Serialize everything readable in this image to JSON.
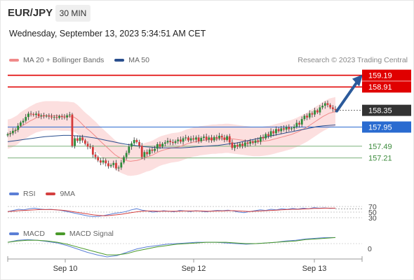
{
  "header": {
    "symbol": "EUR/JPY",
    "timeframe": "30 MIN"
  },
  "datetime": "Wednesday, September 13, 2023 5:34:51 AM CET",
  "legend": {
    "ma_bb_label": "MA 20 + Bollinger Bands",
    "ma50_label": "MA 50",
    "credit": "Research © 2023 Trading Central",
    "rsi_label": "RSI",
    "rsi_ma_label": "9MA",
    "macd_label": "MACD",
    "macd_signal_label": "MACD Signal"
  },
  "colors": {
    "ma20": "#f08a8a",
    "ma50": "#2a4f8e",
    "bollinger": "#fbd9d9",
    "bull": "#2d8b3a",
    "bear": "#d43a3a",
    "resistance": "#e00000",
    "pivot": "#2a6bd0",
    "support": "#7ab07a",
    "rsi": "#5b7fd6",
    "rsi_ma": "#d44040",
    "macd": "#5b7fd6",
    "macd_signal": "#4a9a2a",
    "arrow": "#2b5a9b",
    "last_price": "#333333"
  },
  "chart_data": [
    {
      "type": "candlestick",
      "symbol": "EUR/JPY",
      "x_labels": [
        "Sep 10",
        "Sep 12",
        "Sep 13"
      ],
      "ylim": [
        156.6,
        159.35
      ],
      "last_price": 158.35,
      "levels": [
        {
          "label": "159.19",
          "value": 159.19,
          "kind": "resistance"
        },
        {
          "label": "158.91",
          "value": 158.91,
          "kind": "resistance"
        },
        {
          "label": "157.95",
          "value": 157.95,
          "kind": "pivot"
        },
        {
          "label": "157.49",
          "value": 157.49,
          "kind": "support"
        },
        {
          "label": "157.21",
          "value": 157.21,
          "kind": "support"
        }
      ],
      "close": [
        157.78,
        157.8,
        157.86,
        157.88,
        157.98,
        158.06,
        158.1,
        158.19,
        158.27,
        158.26,
        158.24,
        158.27,
        158.21,
        158.23,
        158.21,
        158.22,
        158.2,
        158.18,
        158.19,
        158.17,
        158.21,
        158.19,
        158.18,
        158.23,
        158.25,
        157.5,
        157.68,
        157.62,
        157.7,
        157.63,
        157.55,
        157.48,
        157.47,
        157.29,
        157.23,
        157.15,
        157.1,
        157.15,
        157.08,
        157.01,
        157.04,
        157.09,
        156.96,
        156.98,
        157.1,
        157.23,
        157.33,
        157.48,
        157.56,
        157.64,
        157.59,
        157.5,
        157.23,
        157.35,
        157.3,
        157.41,
        157.38,
        157.43,
        157.54,
        157.48,
        157.55,
        157.58,
        157.62,
        157.59,
        157.57,
        157.61,
        157.65,
        157.6,
        157.68,
        157.7,
        157.63,
        157.68,
        157.65,
        157.7,
        157.61,
        157.69,
        157.72,
        157.65,
        157.7,
        157.63,
        157.71,
        157.68,
        157.74,
        157.7,
        157.64,
        157.73,
        157.58,
        157.45,
        157.52,
        157.48,
        157.55,
        157.5,
        157.58,
        157.55,
        157.6,
        157.57,
        157.63,
        157.6,
        157.71,
        157.68,
        157.78,
        157.74,
        157.85,
        157.8,
        157.9,
        157.85,
        157.92,
        157.89,
        157.95,
        157.9,
        157.92,
        157.96,
        158.05,
        158.01,
        158.14,
        158.22,
        158.18,
        158.28,
        158.25,
        158.35,
        158.3,
        158.42,
        158.46,
        158.52,
        158.48,
        158.42,
        158.38,
        158.35
      ],
      "ma20": [
        157.78,
        157.8,
        157.84,
        157.88,
        157.95,
        158.0,
        158.04,
        158.09,
        158.13,
        158.17,
        158.19,
        158.21,
        158.22,
        158.22,
        158.22,
        158.22,
        158.22,
        158.21,
        158.21,
        158.21,
        158.2,
        158.19,
        158.14,
        158.07,
        157.99,
        157.92,
        157.86,
        157.79,
        157.72,
        157.64,
        157.57,
        157.5,
        157.43,
        157.36,
        157.29,
        157.24,
        157.2,
        157.17,
        157.14,
        157.13,
        157.14,
        157.15,
        157.17,
        157.2,
        157.23,
        157.25,
        157.28,
        157.32,
        157.36,
        157.39,
        157.41,
        157.43,
        157.45,
        157.46,
        157.47,
        157.49,
        157.52,
        157.55,
        157.57,
        157.59,
        157.6,
        157.62,
        157.63,
        157.64,
        157.65,
        157.66,
        157.66,
        157.67,
        157.67,
        157.68,
        157.68,
        157.67,
        157.66,
        157.65,
        157.64,
        157.63,
        157.62,
        157.61,
        157.6,
        157.6,
        157.6,
        157.61,
        157.62,
        157.63,
        157.65,
        157.67,
        157.69,
        157.71,
        157.73,
        157.75,
        157.77,
        157.8,
        157.83,
        157.87,
        157.91,
        157.95,
        158.0,
        158.05,
        158.1,
        158.15,
        158.2,
        158.24,
        158.28,
        158.3,
        158.32
      ],
      "ma50": [
        157.6,
        157.62,
        157.64,
        157.66,
        157.68,
        157.7,
        157.72,
        157.73,
        157.74,
        157.75,
        157.75,
        157.74,
        157.73,
        157.71,
        157.69,
        157.66,
        157.63,
        157.6,
        157.57,
        157.54,
        157.52,
        157.5,
        157.48,
        157.47,
        157.46,
        157.45,
        157.45,
        157.45,
        157.45,
        157.46,
        157.47,
        157.48,
        157.49,
        157.5,
        157.51,
        157.53,
        157.55,
        157.57,
        157.6,
        157.63,
        157.66,
        157.69,
        157.72,
        157.75,
        157.78,
        157.81,
        157.84,
        157.87,
        157.9,
        157.93,
        157.96,
        157.98,
        157.99,
        158.0
      ],
      "bollinger_band": "ma20 ± ~0.35"
    },
    {
      "type": "line",
      "name": "RSI",
      "levels": [
        70,
        50,
        30
      ],
      "ylim": [
        0,
        100
      ],
      "series": [
        {
          "name": "RSI",
          "values": [
            52,
            56,
            60,
            58,
            62,
            64,
            61,
            59,
            60,
            58,
            56,
            52,
            48,
            44,
            40,
            36,
            34,
            35,
            38,
            42,
            46,
            48,
            52,
            58,
            62,
            57,
            54,
            50,
            52,
            55,
            53,
            51,
            56,
            54,
            52,
            55,
            53,
            51,
            54,
            56,
            55,
            57,
            54,
            50,
            48,
            52,
            55,
            58,
            56,
            60,
            58,
            62,
            60,
            63,
            61,
            64,
            62,
            66,
            64,
            65,
            63,
            64
          ]
        },
        {
          "name": "9MA",
          "values": [
            52,
            53,
            55,
            56,
            57,
            58,
            59,
            59,
            59,
            58,
            57,
            55,
            52,
            49,
            46,
            43,
            40,
            38,
            37,
            38,
            40,
            42,
            45,
            48,
            51,
            53,
            54,
            54,
            53,
            53,
            53,
            53,
            53,
            54,
            54,
            54,
            54,
            53,
            53,
            54,
            54,
            55,
            55,
            54,
            53,
            52,
            53,
            54,
            55,
            56,
            57,
            58,
            59,
            60,
            60,
            61,
            62,
            63,
            63,
            64,
            64,
            64
          ]
        }
      ]
    },
    {
      "type": "line",
      "name": "MACD",
      "levels": [
        0
      ],
      "series": [
        {
          "name": "MACD",
          "values": [
            0.02,
            0.05,
            0.06,
            0.05,
            0.03,
            0.01,
            -0.03,
            -0.08,
            -0.13,
            -0.17,
            -0.2,
            -0.18,
            -0.13,
            -0.08,
            -0.05,
            -0.03,
            -0.01,
            0.0,
            0.01,
            0.02,
            0.02,
            0.02,
            0.01,
            0.0,
            -0.01,
            0.0,
            0.01,
            0.02,
            0.04,
            0.05,
            0.07,
            0.08,
            0.09,
            0.09
          ]
        },
        {
          "name": "MACD Signal",
          "values": [
            0.02,
            0.04,
            0.05,
            0.05,
            0.04,
            0.02,
            -0.01,
            -0.05,
            -0.09,
            -0.13,
            -0.17,
            -0.17,
            -0.15,
            -0.11,
            -0.08,
            -0.05,
            -0.03,
            -0.01,
            0.0,
            0.01,
            0.02,
            0.02,
            0.02,
            0.01,
            0.0,
            0.0,
            0.01,
            0.02,
            0.03,
            0.04,
            0.06,
            0.07,
            0.08,
            0.09
          ]
        }
      ]
    }
  ]
}
